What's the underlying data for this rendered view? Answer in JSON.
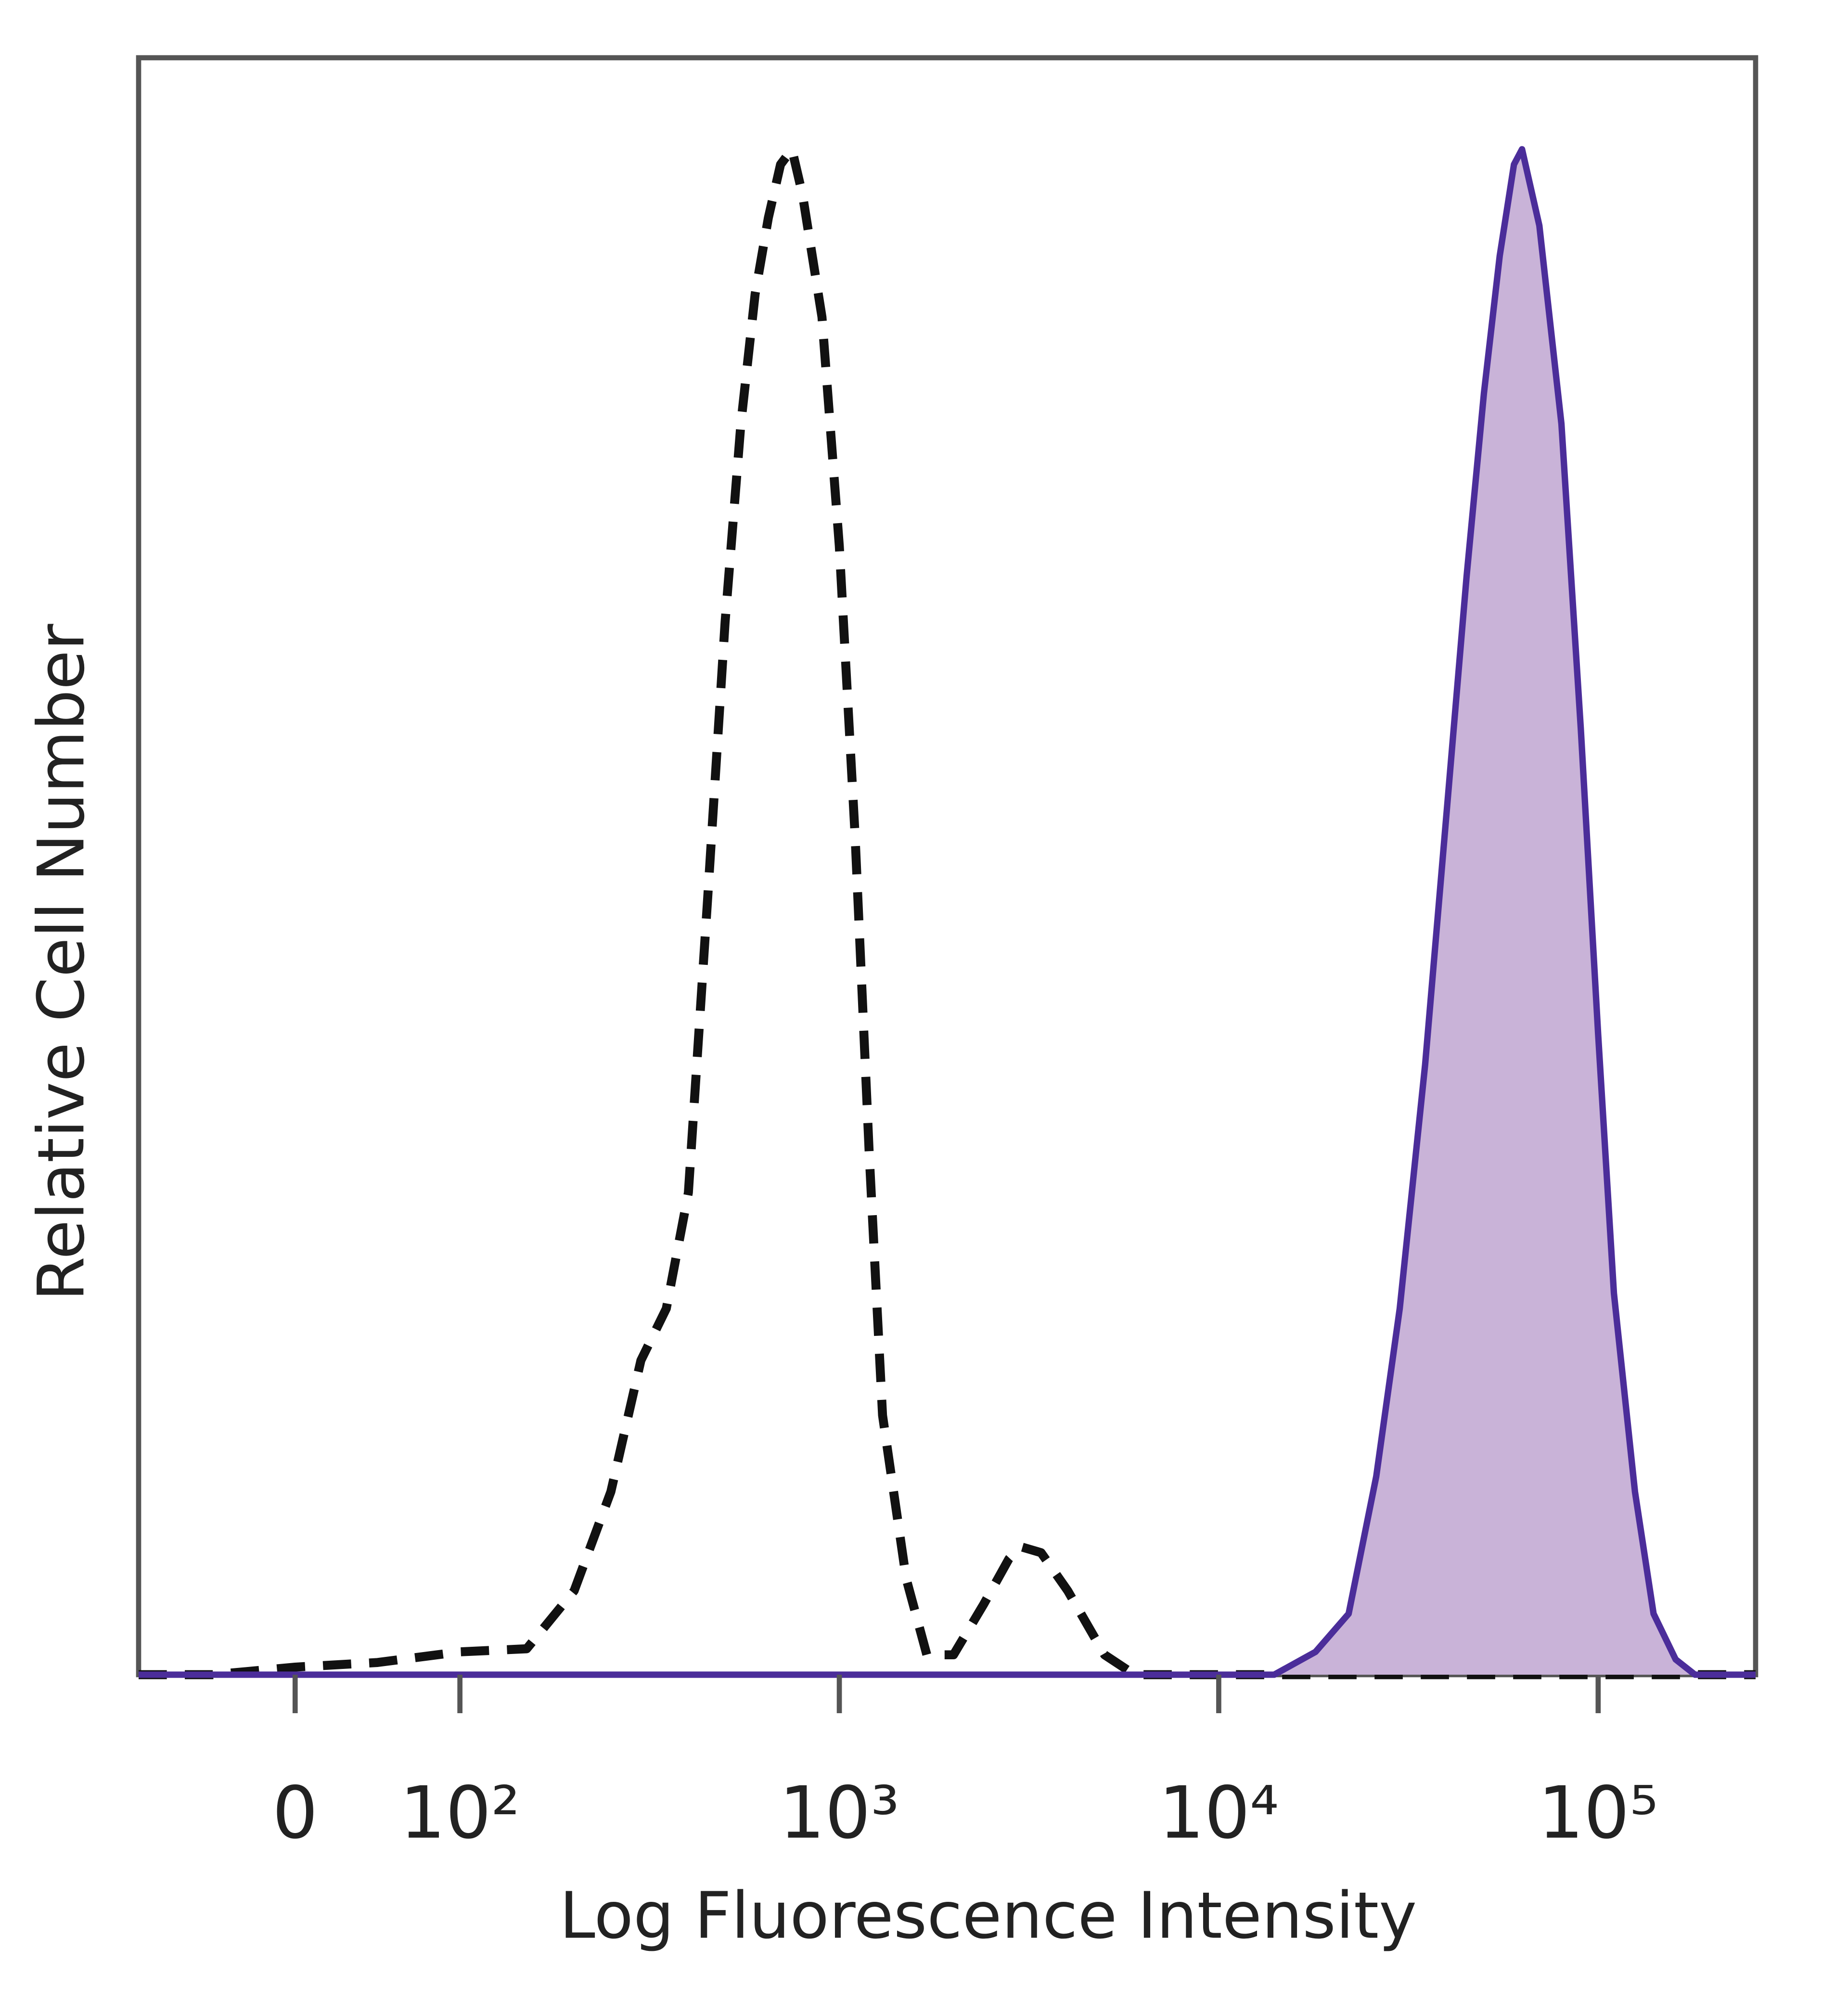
{
  "chart_data": {
    "type": "histogram-overlay",
    "xlabel": "Log Fluorescence Intensity",
    "ylabel": "Relative Cell Number",
    "xscale": "biexponential",
    "xlim": [
      -95,
      260000
    ],
    "ylim": [
      0,
      106
    ],
    "xticks": [
      0,
      {
        "value": 100,
        "label": "10²"
      },
      {
        "value": 1000,
        "label": "10³"
      },
      {
        "value": 10000,
        "label": "10⁴"
      },
      {
        "value": 100000,
        "label": "10⁵"
      }
    ],
    "series": [
      {
        "color": "#111111",
        "style": "dashed",
        "x": [
          -95,
          -50,
          0,
          50,
          100,
          150,
          200,
          250,
          300,
          350,
          400,
          450,
          500,
          550,
          600,
          650,
          700,
          750,
          800,
          900,
          1000,
          1100,
          1200,
          1300,
          1500,
          1700,
          2000,
          2400,
          2800,
          3000,
          3400,
          4000,
          5000,
          6000,
          260000
        ],
        "values": [
          0,
          0,
          0.5,
          0.8,
          1.5,
          1.7,
          5.5,
          12,
          20.6,
          24,
          31.6,
          51,
          69,
          82,
          90.5,
          95.5,
          99,
          100,
          97,
          89,
          74,
          55,
          34,
          17,
          6.3,
          1.3,
          1.3,
          4.6,
          7.6,
          8.4,
          8,
          5.5,
          1.3,
          0,
          0
        ]
      },
      {
        "color": "#4b2d9a",
        "fill": "#c9b3d8",
        "style": "solid",
        "x": [
          -95,
          14000,
          18000,
          22000,
          26000,
          30000,
          35000,
          40000,
          45000,
          50000,
          55000,
          60000,
          63000,
          70000,
          80000,
          90000,
          100000,
          110000,
          125000,
          140000,
          160000,
          180000,
          260000
        ],
        "values": [
          0,
          0,
          1.5,
          4,
          13,
          24,
          40,
          57,
          72,
          84,
          93,
          99,
          100,
          95,
          82,
          62,
          42,
          25,
          12,
          4,
          1,
          0,
          0
        ]
      }
    ]
  }
}
